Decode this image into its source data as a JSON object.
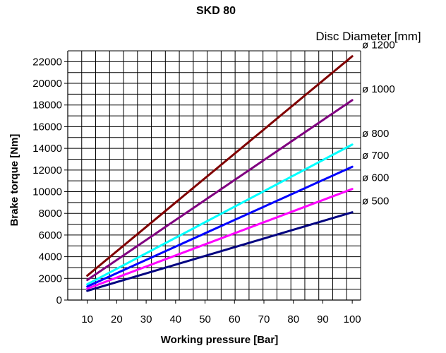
{
  "chart_data": {
    "type": "line",
    "title": "SKD 80",
    "legend_title": "Disc Diameter [mm]",
    "xlabel": "Working pressure [Bar]",
    "ylabel": "Brake torque [Nm]",
    "xlim": [
      10,
      100
    ],
    "ylim": [
      0,
      22000
    ],
    "x_ticks": [
      10,
      20,
      30,
      40,
      50,
      60,
      70,
      80,
      90,
      100
    ],
    "y_ticks": [
      0,
      2000,
      4000,
      6000,
      8000,
      10000,
      12000,
      14000,
      16000,
      18000,
      20000,
      22000
    ],
    "grid": true,
    "series_label_position": "right",
    "series": [
      {
        "name": "ø 1200",
        "color": "#800000",
        "x": [
          10,
          100
        ],
        "y": [
          2250,
          22500
        ]
      },
      {
        "name": "ø 1000",
        "color": "#800080",
        "x": [
          10,
          100
        ],
        "y": [
          1850,
          18450
        ]
      },
      {
        "name": "ø 800",
        "color": "#00FFFF",
        "x": [
          10,
          100
        ],
        "y": [
          1450,
          14350
        ]
      },
      {
        "name": "ø 700",
        "color": "#0000FF",
        "x": [
          10,
          100
        ],
        "y": [
          1250,
          12300
        ]
      },
      {
        "name": "ø 600",
        "color": "#FF00FF",
        "x": [
          10,
          100
        ],
        "y": [
          1050,
          10250
        ]
      },
      {
        "name": "ø 500",
        "color": "#000080",
        "x": [
          10,
          100
        ],
        "y": [
          850,
          8100
        ]
      }
    ]
  }
}
